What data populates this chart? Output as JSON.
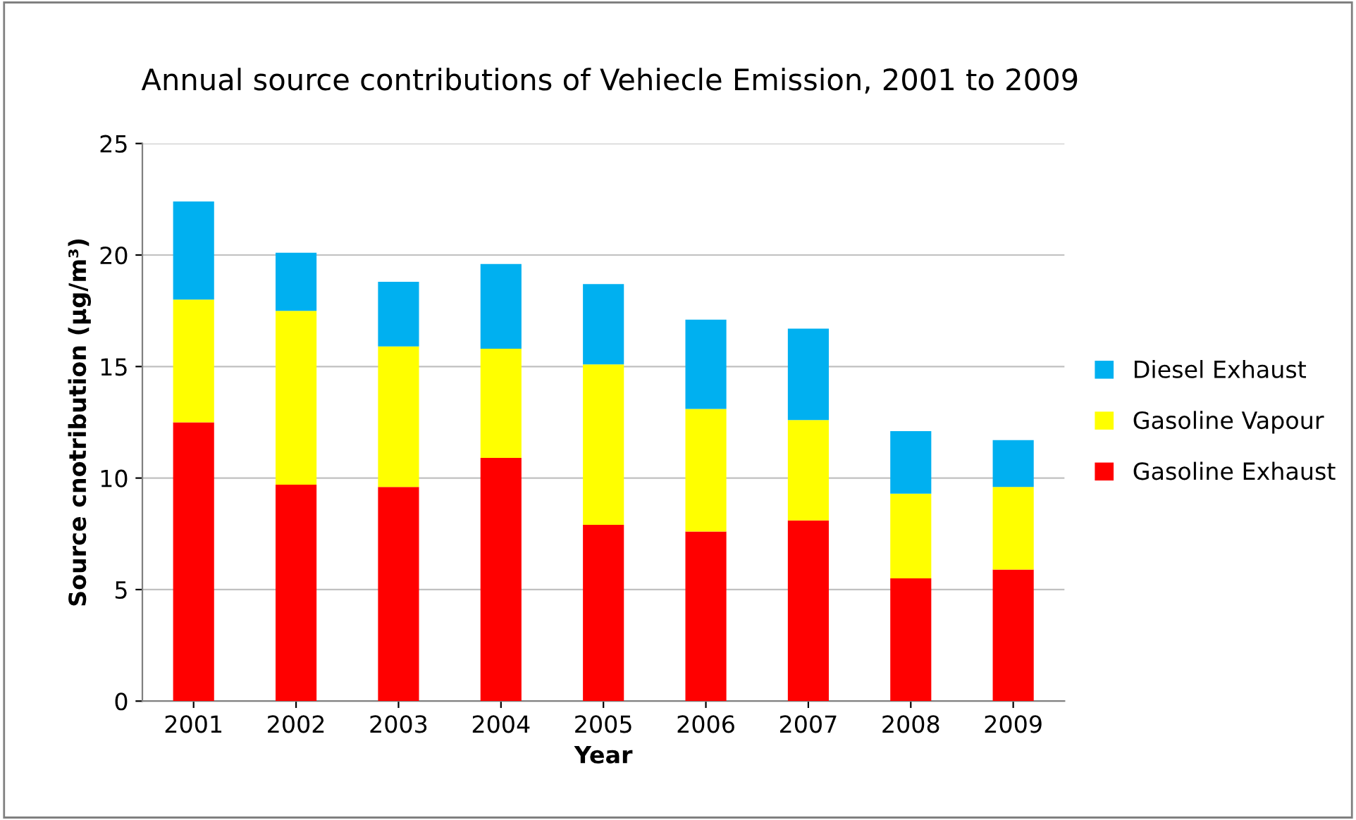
{
  "chart_data": {
    "type": "bar",
    "title": "Annual source contributions of Vehiecle Emission, 2001 to 2009",
    "xlabel": "Year",
    "ylabel": "Source cnotribution (µg/m³)",
    "categories": [
      "2001",
      "2002",
      "2003",
      "2004",
      "2005",
      "2006",
      "2007",
      "2008",
      "2009"
    ],
    "stacked": true,
    "series": [
      {
        "name": "Gasoline Exhaust",
        "color": "#ff0000",
        "values": [
          12.5,
          9.7,
          9.6,
          10.9,
          7.9,
          7.6,
          8.1,
          5.5,
          5.9
        ]
      },
      {
        "name": "Gasoline Vapour",
        "color": "#ffff00",
        "values": [
          5.5,
          7.8,
          6.3,
          4.9,
          7.2,
          5.5,
          4.5,
          3.8,
          3.7
        ]
      },
      {
        "name": "Diesel Exhaust",
        "color": "#00b0f0",
        "values": [
          4.4,
          2.6,
          2.9,
          3.8,
          3.6,
          4.0,
          4.1,
          2.8,
          2.1
        ]
      }
    ],
    "ylim": [
      0,
      25
    ],
    "yticks": [
      0,
      5,
      10,
      15,
      20,
      25
    ],
    "grid": "y",
    "legend": "right"
  }
}
